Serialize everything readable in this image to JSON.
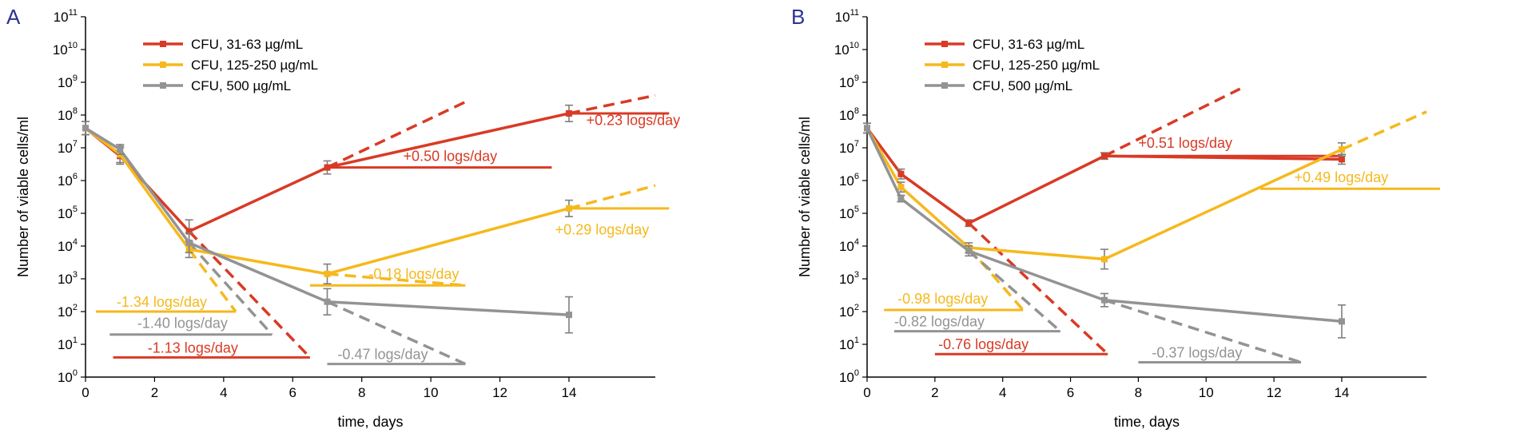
{
  "colors": {
    "red": "#d93a25",
    "yellow": "#f6b81c",
    "gray": "#939393",
    "axis": "#000000",
    "letter": "#2e3192"
  },
  "chart_data": [
    {
      "panel": "A",
      "type": "line",
      "xlabel": "time, days",
      "ylabel": "Number of viable cells/ml",
      "x_ticks": [
        0,
        2,
        4,
        6,
        8,
        10,
        12,
        14
      ],
      "xlim": [
        0,
        16.5
      ],
      "y_scale": "log10",
      "ylim_exp": [
        0,
        11
      ],
      "y_tick_base": "10",
      "y_tick_exponents": [
        "0",
        "1",
        "2",
        "3",
        "4",
        "5",
        "6",
        "7",
        "8",
        "9",
        "10",
        "11"
      ],
      "legend": [
        "CFU, 31-63 µg/mL",
        "CFU, 125-250 µg/mL",
        "CFU, 500 µg/mL"
      ],
      "series": [
        {
          "name": "CFU, 31-63 µg/mL",
          "color": "red",
          "points": [
            {
              "x": 0,
              "y": 7.6
            },
            {
              "x": 1,
              "y": 6.75
            },
            {
              "x": 3,
              "y": 4.45
            },
            {
              "x": 7,
              "y": 6.4
            },
            {
              "x": 14,
              "y": 8.05
            }
          ],
          "err": [
            0.2,
            0.25,
            0.35,
            0.2,
            0.25
          ]
        },
        {
          "name": "CFU, 125-250 µg/mL",
          "color": "yellow",
          "points": [
            {
              "x": 0,
              "y": 7.6
            },
            {
              "x": 1,
              "y": 6.8
            },
            {
              "x": 3,
              "y": 3.9
            },
            {
              "x": 7,
              "y": 3.15
            },
            {
              "x": 14,
              "y": 5.15
            }
          ],
          "err": [
            0.2,
            0.25,
            0.25,
            0.3,
            0.25
          ]
        },
        {
          "name": "CFU, 500 µg/mL",
          "color": "gray",
          "points": [
            {
              "x": 0,
              "y": 7.6
            },
            {
              "x": 1,
              "y": 6.95
            },
            {
              "x": 3,
              "y": 4.1
            },
            {
              "x": 7,
              "y": 2.3
            },
            {
              "x": 14,
              "y": 1.9
            }
          ],
          "err": [
            0.2,
            0.15,
            0.3,
            0.4,
            0.55
          ]
        }
      ],
      "annotations": [
        {
          "text": "+0.23 logs/day",
          "color": "red",
          "slope_from": [
            14,
            8.05
          ],
          "slope_to": [
            16.5,
            8.6
          ],
          "base_from": [
            14,
            8.05
          ],
          "base_to": [
            16.9,
            8.05
          ],
          "label_at": [
            14.5,
            7.7
          ]
        },
        {
          "text": "+0.50 logs/day",
          "color": "red",
          "slope_from": [
            7,
            6.4
          ],
          "slope_to": [
            11,
            8.4
          ],
          "base_from": [
            7,
            6.4
          ],
          "base_to": [
            13.5,
            6.4
          ],
          "label_at": [
            9.2,
            6.6
          ]
        },
        {
          "text": "+0.29 logs/day",
          "color": "yellow",
          "slope_from": [
            14,
            5.15
          ],
          "slope_to": [
            16.5,
            5.85
          ],
          "base_from": [
            14,
            5.15
          ],
          "base_to": [
            16.9,
            5.15
          ],
          "label_at": [
            13.6,
            4.35
          ]
        },
        {
          "text": "-0.18 logs/day",
          "color": "yellow",
          "slope_from": [
            7,
            3.15
          ],
          "slope_to": [
            11,
            2.8
          ],
          "base_from": [
            6.5,
            2.8
          ],
          "base_to": [
            11,
            2.8
          ],
          "label_at": [
            8.2,
            3.0
          ]
        },
        {
          "text": "-1.34 logs/day",
          "color": "yellow",
          "slope_from": [
            3,
            3.9
          ],
          "slope_to": [
            4.35,
            2.0
          ],
          "base_from": [
            0.3,
            2.0
          ],
          "base_to": [
            4.35,
            2.0
          ],
          "label_at": [
            0.9,
            2.15
          ]
        },
        {
          "text": "-1.40 logs/day",
          "color": "gray",
          "slope_from": [
            3,
            4.1
          ],
          "slope_to": [
            5.4,
            1.3
          ],
          "base_from": [
            0.7,
            1.3
          ],
          "base_to": [
            5.4,
            1.3
          ],
          "label_at": [
            1.5,
            1.5
          ]
        },
        {
          "text": "-1.13 logs/day",
          "color": "red",
          "slope_from": [
            3,
            4.45
          ],
          "slope_to": [
            6.5,
            0.6
          ],
          "base_from": [
            0.8,
            0.6
          ],
          "base_to": [
            6.5,
            0.6
          ],
          "label_at": [
            1.8,
            0.75
          ]
        },
        {
          "text": "-0.47 logs/day",
          "color": "gray",
          "slope_from": [
            7,
            2.3
          ],
          "slope_to": [
            11,
            0.4
          ],
          "base_from": [
            7,
            0.4
          ],
          "base_to": [
            11,
            0.4
          ],
          "label_at": [
            7.3,
            0.55
          ]
        }
      ]
    },
    {
      "panel": "B",
      "type": "line",
      "xlabel": "time, days",
      "ylabel": "Number of viable cells/ml",
      "x_ticks": [
        0,
        2,
        4,
        6,
        8,
        10,
        12,
        14
      ],
      "xlim": [
        0,
        16.5
      ],
      "y_scale": "log10",
      "ylim_exp": [
        0,
        11
      ],
      "y_tick_base": "10",
      "y_tick_exponents": [
        "0",
        "1",
        "2",
        "3",
        "4",
        "5",
        "6",
        "7",
        "8",
        "9",
        "10",
        "11"
      ],
      "legend": [
        "CFU, 31-63 µg/mL",
        "CFU, 125-250 µg/mL",
        "CFU, 500 µg/mL"
      ],
      "series": [
        {
          "name": "CFU, 31-63 µg/mL",
          "color": "red",
          "points": [
            {
              "x": 0,
              "y": 7.6
            },
            {
              "x": 1,
              "y": 6.2
            },
            {
              "x": 3,
              "y": 4.7
            },
            {
              "x": 7,
              "y": 6.75
            },
            {
              "x": 14,
              "y": 6.65
            }
          ],
          "err": [
            0.15,
            0.15,
            0.1,
            0.1,
            0.15
          ]
        },
        {
          "name": "CFU, 125-250 µg/mL",
          "color": "yellow",
          "points": [
            {
              "x": 0,
              "y": 7.6
            },
            {
              "x": 1,
              "y": 5.8
            },
            {
              "x": 3,
              "y": 3.95
            },
            {
              "x": 7,
              "y": 3.6
            },
            {
              "x": 14,
              "y": 6.95
            }
          ],
          "err": [
            0.15,
            0.15,
            0.15,
            0.3,
            0.2
          ]
        },
        {
          "name": "CFU, 500 µg/mL",
          "color": "gray",
          "points": [
            {
              "x": 0,
              "y": 7.6
            },
            {
              "x": 1,
              "y": 5.45
            },
            {
              "x": 3,
              "y": 3.85
            },
            {
              "x": 7,
              "y": 2.35
            },
            {
              "x": 14,
              "y": 1.7
            }
          ],
          "err": [
            0.15,
            0.1,
            0.15,
            0.2,
            0.5
          ]
        }
      ],
      "annotations": [
        {
          "text": "+0.51 logs/day",
          "color": "red",
          "slope_from": [
            7,
            6.75
          ],
          "slope_to": [
            11,
            8.8
          ],
          "base_from": [
            7,
            6.75
          ],
          "base_to": [
            14,
            6.75
          ],
          "label_at": [
            8,
            7.0
          ]
        },
        {
          "text": "+0.49 logs/day",
          "color": "yellow",
          "slope_from": [
            14,
            6.95
          ],
          "slope_to": [
            16.5,
            8.1
          ],
          "base_from": [
            11.6,
            5.75
          ],
          "base_to": [
            16.9,
            5.75
          ],
          "label_at": [
            12.6,
            5.95
          ]
        },
        {
          "text": "-0.98 logs/day",
          "color": "yellow",
          "slope_from": [
            3,
            3.95
          ],
          "slope_to": [
            4.6,
            2.05
          ],
          "base_from": [
            0.5,
            2.05
          ],
          "base_to": [
            4.6,
            2.05
          ],
          "label_at": [
            0.9,
            2.25
          ]
        },
        {
          "text": "-0.82 logs/day",
          "color": "gray",
          "slope_from": [
            3,
            3.85
          ],
          "slope_to": [
            5.7,
            1.4
          ],
          "base_from": [
            0.8,
            1.4
          ],
          "base_to": [
            5.7,
            1.4
          ],
          "label_at": [
            0.8,
            1.55
          ]
        },
        {
          "text": "-0.76 logs/day",
          "color": "red",
          "slope_from": [
            3,
            4.7
          ],
          "slope_to": [
            7.1,
            0.7
          ],
          "base_from": [
            2,
            0.7
          ],
          "base_to": [
            7.1,
            0.7
          ],
          "label_at": [
            2.1,
            0.85
          ]
        },
        {
          "text": "-0.37 logs/day",
          "color": "gray",
          "slope_from": [
            7,
            2.35
          ],
          "slope_to": [
            12.8,
            0.45
          ],
          "base_from": [
            8,
            0.45
          ],
          "base_to": [
            12.8,
            0.45
          ],
          "label_at": [
            8.4,
            0.6
          ]
        }
      ]
    }
  ]
}
